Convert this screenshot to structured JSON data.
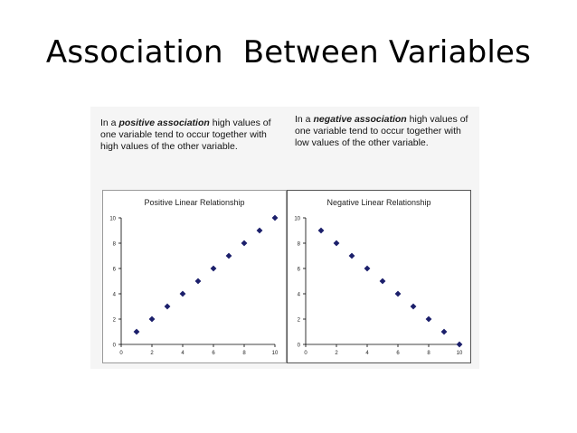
{
  "slide": {
    "title": "Association  Between Variables"
  },
  "captions": {
    "left": {
      "prefix": "In a ",
      "emphasis": "positive association",
      "suffix": " high values of one variable tend to occur together with high values of the other variable."
    },
    "right": {
      "prefix": "In a ",
      "emphasis": "negative association",
      "suffix": " high values of one variable tend to occur together with low values of the other variable."
    }
  },
  "colors": {
    "marker": "#1b1f6b",
    "axis": "#000000"
  },
  "chart_data": [
    {
      "type": "scatter",
      "title": "Positive Linear Relationship",
      "x": [
        1,
        2,
        3,
        4,
        5,
        6,
        7,
        8,
        9,
        10
      ],
      "y": [
        1,
        2,
        3,
        4,
        5,
        6,
        7,
        8,
        9,
        10
      ],
      "xlim": [
        0,
        10
      ],
      "ylim": [
        0,
        10
      ],
      "xticks": [
        0,
        2,
        4,
        6,
        8,
        10
      ],
      "yticks": [
        0,
        2,
        4,
        6,
        8,
        10
      ],
      "marker": "diamond",
      "grid": false
    },
    {
      "type": "scatter",
      "title": "Negative Linear Relationship",
      "x": [
        1,
        2,
        3,
        4,
        5,
        6,
        7,
        8,
        9,
        10
      ],
      "y": [
        9,
        8,
        7,
        6,
        5,
        4,
        3,
        2,
        1,
        0
      ],
      "xlim": [
        0,
        10
      ],
      "ylim": [
        0,
        10
      ],
      "xticks": [
        0,
        2,
        4,
        6,
        8,
        10
      ],
      "yticks": [
        0,
        2,
        4,
        6,
        8,
        10
      ],
      "marker": "diamond",
      "grid": false
    }
  ]
}
